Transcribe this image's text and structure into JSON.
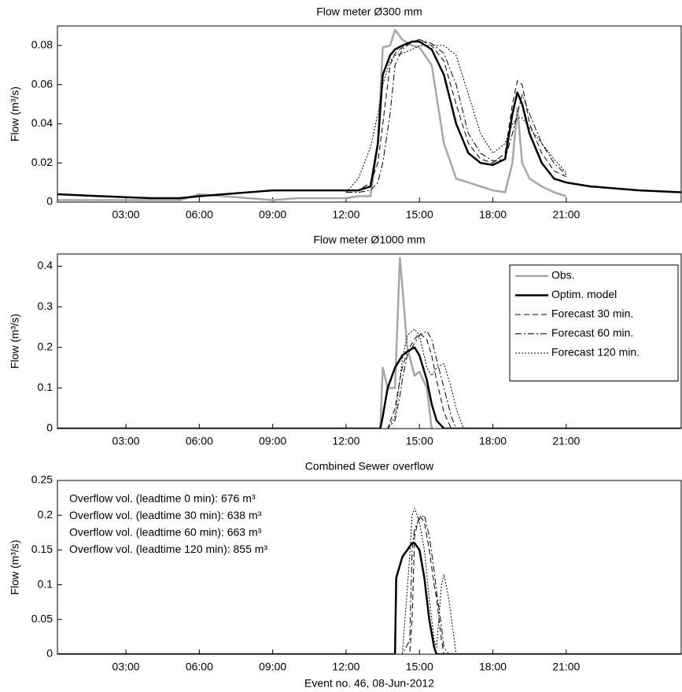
{
  "chart_data": [
    {
      "type": "line",
      "title": "Flow meter Ø300 mm",
      "ylabel": "Flow (m³/s)",
      "xlim": [
        0.2,
        25.7
      ],
      "ylim": [
        0,
        0.09
      ],
      "xticks": [
        {
          "value": 3,
          "label": "03:00"
        },
        {
          "value": 6,
          "label": "06:00"
        },
        {
          "value": 9,
          "label": "09:00"
        },
        {
          "value": 12,
          "label": "12:00"
        },
        {
          "value": 15,
          "label": "15:00"
        },
        {
          "value": 18,
          "label": "18:00"
        },
        {
          "value": 21,
          "label": "21:00"
        }
      ],
      "yticks": [
        0,
        0.02,
        0.04,
        0.06,
        0.08
      ],
      "x": [
        0.2,
        2,
        4,
        5.2,
        6,
        7,
        8,
        9,
        10,
        11,
        12,
        12.5,
        13,
        13.3,
        13.5,
        13.8,
        14,
        14.3,
        14.7,
        15,
        15.5,
        16,
        16.5,
        17,
        17.5,
        18,
        18.5,
        18.8,
        19,
        19.2,
        19.5,
        20,
        20.5,
        21,
        22,
        23,
        24,
        25.7
      ],
      "series": [
        {
          "name": "Obs.",
          "color": "#a6a6a6",
          "linewidth": 2.5,
          "linestyle": "solid",
          "values": [
            0.001,
            0.001,
            0.001,
            0.001,
            0.004,
            0.003,
            0.002,
            0.001,
            0.002,
            0.002,
            0.002,
            0.003,
            0.003,
            0.03,
            0.079,
            0.08,
            0.088,
            0.083,
            0.08,
            0.079,
            0.07,
            0.03,
            0.012,
            0.01,
            0.008,
            0.006,
            0.005,
            0.02,
            0.048,
            0.02,
            0.012,
            0.008,
            0.005,
            0.003,
            null,
            null,
            null,
            null
          ]
        },
        {
          "name": "Optim. model",
          "color": "#000000",
          "linewidth": 2.5,
          "linestyle": "solid",
          "values": [
            0.004,
            0.003,
            0.002,
            0.002,
            0.003,
            0.004,
            0.005,
            0.006,
            0.006,
            0.006,
            0.006,
            0.006,
            0.008,
            0.03,
            0.065,
            0.075,
            0.078,
            0.08,
            0.082,
            0.082,
            0.078,
            0.065,
            0.04,
            0.025,
            0.02,
            0.019,
            0.022,
            0.045,
            0.056,
            0.05,
            0.035,
            0.02,
            0.012,
            0.01,
            0.008,
            0.007,
            0.006,
            0.005
          ]
        },
        {
          "name": "Forecast 30 min.",
          "color": "#000000",
          "linewidth": 1,
          "linestyle": "dashed",
          "values": [
            null,
            null,
            null,
            null,
            null,
            null,
            null,
            null,
            null,
            null,
            0.006,
            0.006,
            0.01,
            0.02,
            0.04,
            0.07,
            0.076,
            0.079,
            0.082,
            0.083,
            0.08,
            0.072,
            0.05,
            0.03,
            0.022,
            0.02,
            0.025,
            0.05,
            0.062,
            0.06,
            0.04,
            0.025,
            0.016,
            0.013,
            null,
            null,
            null,
            null
          ]
        },
        {
          "name": "Forecast 60 min.",
          "color": "#000000",
          "linewidth": 1,
          "linestyle": "dashdot",
          "values": [
            null,
            null,
            null,
            null,
            null,
            null,
            null,
            null,
            null,
            null,
            0.005,
            0.005,
            0.006,
            0.01,
            0.02,
            0.045,
            0.07,
            0.078,
            0.082,
            0.083,
            0.081,
            0.076,
            0.06,
            0.035,
            0.025,
            0.021,
            0.022,
            0.035,
            0.045,
            0.055,
            0.045,
            0.03,
            0.02,
            0.014,
            null,
            null,
            null,
            null
          ]
        },
        {
          "name": "Forecast 120 min.",
          "color": "#000000",
          "linewidth": 1,
          "linestyle": "dotted",
          "values": [
            null,
            null,
            null,
            null,
            null,
            null,
            null,
            null,
            null,
            null,
            0.005,
            0.012,
            0.028,
            0.045,
            0.06,
            0.072,
            0.075,
            0.076,
            0.078,
            0.08,
            0.08,
            0.08,
            0.075,
            0.055,
            0.035,
            0.025,
            0.03,
            0.04,
            0.043,
            0.043,
            0.038,
            0.03,
            0.022,
            0.015,
            null,
            null,
            null,
            null
          ]
        }
      ]
    },
    {
      "type": "line",
      "title": "Flow meter Ø1000 mm",
      "ylabel": "Flow (m³/s)",
      "legend": "upper right",
      "xlim": [
        0.2,
        25.7
      ],
      "ylim": [
        0,
        0.43
      ],
      "xticks": [
        {
          "value": 3,
          "label": "03:00"
        },
        {
          "value": 6,
          "label": "06:00"
        },
        {
          "value": 9,
          "label": "09:00"
        },
        {
          "value": 12,
          "label": "12:00"
        },
        {
          "value": 15,
          "label": "15:00"
        },
        {
          "value": 18,
          "label": "18:00"
        },
        {
          "value": 21,
          "label": "21:00"
        }
      ],
      "yticks": [
        0,
        0.1,
        0.2,
        0.3,
        0.4
      ],
      "x": [
        0.2,
        13.4,
        13.5,
        13.7,
        14,
        14.2,
        14.3,
        14.5,
        14.8,
        15,
        15.3,
        15.5,
        15.7,
        16,
        16.3,
        16.5,
        16.8,
        17,
        25.7
      ],
      "series": [
        {
          "name": "Obs.",
          "color": "#a6a6a6",
          "linewidth": 2.5,
          "linestyle": "solid",
          "values": [
            0,
            0,
            0.15,
            0.1,
            0.1,
            0.42,
            0.35,
            0.2,
            0.13,
            0.14,
            0.1,
            0,
            null,
            null,
            null,
            null,
            null,
            null,
            null
          ]
        },
        {
          "name": "Optim. model",
          "color": "#000000",
          "linewidth": 2.5,
          "linestyle": "solid",
          "values": [
            0,
            0,
            0.03,
            0.1,
            0.15,
            0.17,
            0.18,
            0.19,
            0.2,
            0.18,
            0.12,
            0.06,
            0.02,
            0,
            0,
            0,
            0,
            0,
            0
          ]
        },
        {
          "name": "Forecast 30 min.",
          "color": "#000000",
          "linewidth": 1,
          "linestyle": "dashed",
          "values": [
            0,
            0,
            0,
            0,
            0.05,
            0.12,
            0.15,
            0.19,
            0.22,
            0.235,
            0.22,
            0.18,
            0.12,
            0.04,
            0,
            0,
            0,
            0,
            0
          ]
        },
        {
          "name": "Forecast 60 min.",
          "color": "#000000",
          "linewidth": 1,
          "linestyle": "dashdot",
          "values": [
            0,
            0,
            0,
            0,
            0.02,
            0.08,
            0.12,
            0.18,
            0.21,
            0.23,
            0.24,
            0.22,
            0.17,
            0.1,
            0.03,
            0,
            0,
            0,
            0
          ]
        },
        {
          "name": "Forecast 120 min.",
          "color": "#000000",
          "linewidth": 1,
          "linestyle": "dotted",
          "values": [
            0,
            0,
            0,
            0,
            0.03,
            0.12,
            0.17,
            0.23,
            0.245,
            0.23,
            0.15,
            0.13,
            0.15,
            0.16,
            0.1,
            0.05,
            0,
            0,
            0
          ]
        }
      ]
    },
    {
      "type": "line",
      "title": "Combined Sewer overflow",
      "ylabel": "Flow (m³/s)",
      "xlabel": "Event no. 46, 08-Jun-2012",
      "annotations": [
        "Overflow vol. (leadtime 0 min): 676 m³",
        "Overflow vol. (leadtime 30 min): 638 m³",
        "Overflow vol. (leadtime 60 min): 663 m³",
        "Overflow vol. (leadtime 120 min): 855 m³"
      ],
      "xlim": [
        0.2,
        25.7
      ],
      "ylim": [
        0,
        0.25
      ],
      "xticks": [
        {
          "value": 3,
          "label": "03:00"
        },
        {
          "value": 6,
          "label": "06:00"
        },
        {
          "value": 9,
          "label": "09:00"
        },
        {
          "value": 12,
          "label": "12:00"
        },
        {
          "value": 15,
          "label": "15:00"
        },
        {
          "value": 18,
          "label": "18:00"
        },
        {
          "value": 21,
          "label": "21:00"
        }
      ],
      "yticks": [
        0,
        0.05,
        0.1,
        0.15,
        0.2,
        0.25
      ],
      "x": [
        0.2,
        14,
        14.05,
        14.3,
        14.6,
        14.7,
        14.8,
        15,
        15.2,
        15.4,
        15.6,
        15.7,
        15.9,
        16,
        16.2,
        16.5,
        25.7
      ],
      "series": [
        {
          "name": "Optim. model",
          "color": "#000000",
          "linewidth": 2.5,
          "linestyle": "solid",
          "values": [
            0,
            0,
            0.11,
            0.14,
            0.155,
            0.16,
            0.16,
            0.15,
            0.11,
            0.05,
            0.01,
            0,
            0,
            0,
            0,
            0,
            0
          ]
        },
        {
          "name": "Forecast 30 min.",
          "color": "#000000",
          "linewidth": 1,
          "linestyle": "dashed",
          "values": [
            0,
            0,
            0,
            0,
            0,
            0.05,
            0.17,
            0.2,
            0.19,
            0.15,
            0.1,
            0.08,
            0.02,
            0,
            0,
            0,
            0
          ]
        },
        {
          "name": "Forecast 60 min.",
          "color": "#000000",
          "linewidth": 1,
          "linestyle": "dashdot",
          "values": [
            0,
            0,
            0,
            0,
            0.02,
            0.15,
            0.18,
            0.195,
            0.2,
            0.17,
            0.12,
            0.09,
            0.04,
            0.01,
            0,
            0,
            0
          ]
        },
        {
          "name": "Forecast 120 min.",
          "color": "#000000",
          "linewidth": 1,
          "linestyle": "dotted",
          "values": [
            0,
            0,
            0,
            0,
            0.14,
            0.2,
            0.21,
            0.19,
            0.15,
            0.08,
            0.02,
            0.01,
            0.1,
            0.115,
            0.08,
            0,
            0
          ]
        }
      ]
    }
  ]
}
